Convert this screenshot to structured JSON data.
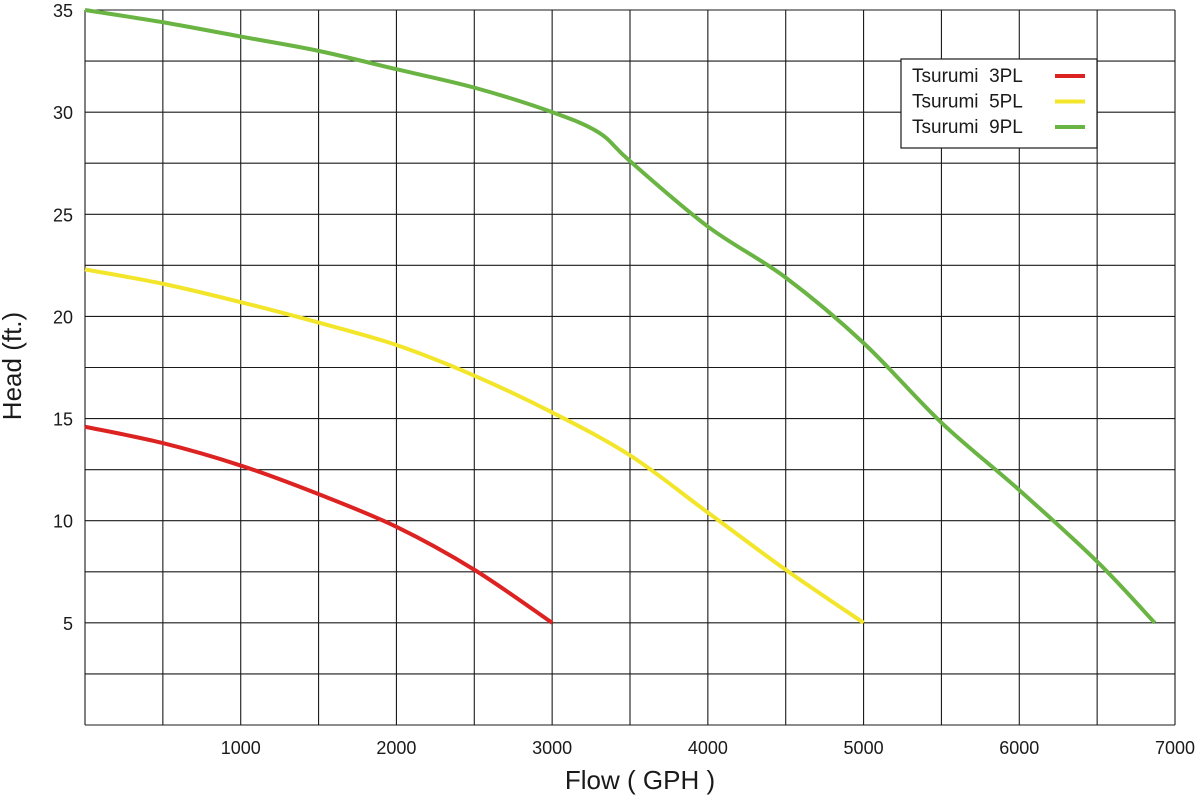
{
  "chart_data": {
    "type": "line",
    "xlabel": "Flow ( GPH )",
    "ylabel": "Head (ft.)",
    "xlim": [
      0,
      7000
    ],
    "ylim": [
      0,
      35
    ],
    "x_ticks": [
      1000,
      2000,
      3000,
      4000,
      5000,
      6000,
      7000
    ],
    "x_tick_labels": [
      "1000",
      "2000",
      "3000",
      "4000",
      "5000",
      "6000",
      "7000"
    ],
    "y_ticks": [
      5,
      10,
      15,
      20,
      25,
      30,
      35
    ],
    "y_tick_labels": [
      "5",
      "10",
      "15",
      "20",
      "25",
      "30",
      "35"
    ],
    "x_grid_step": 500,
    "y_grid_step": 2.5,
    "grid": true,
    "legend_position": "top-right",
    "series": [
      {
        "name": "Tsurumi  3PL",
        "color": "#dd2222",
        "points": [
          [
            0,
            14.6
          ],
          [
            500,
            13.8
          ],
          [
            1000,
            12.7
          ],
          [
            1500,
            11.3
          ],
          [
            2000,
            9.7
          ],
          [
            2500,
            7.6
          ],
          [
            3000,
            5.0
          ]
        ]
      },
      {
        "name": "Tsurumi  5PL",
        "color": "#f2e52a",
        "points": [
          [
            0,
            22.3
          ],
          [
            500,
            21.6
          ],
          [
            1000,
            20.7
          ],
          [
            1500,
            19.7
          ],
          [
            2000,
            18.6
          ],
          [
            2500,
            17.1
          ],
          [
            3000,
            15.3
          ],
          [
            3500,
            13.2
          ],
          [
            4000,
            10.4
          ],
          [
            4500,
            7.6
          ],
          [
            5000,
            5.0
          ]
        ]
      },
      {
        "name": "Tsurumi  9PL",
        "color": "#6ab443",
        "points": [
          [
            0,
            35.0
          ],
          [
            500,
            34.4
          ],
          [
            1000,
            33.7
          ],
          [
            1500,
            33.0
          ],
          [
            2000,
            32.1
          ],
          [
            2500,
            31.2
          ],
          [
            3000,
            30.0
          ],
          [
            3300,
            29.0
          ],
          [
            3500,
            27.6
          ],
          [
            4000,
            24.4
          ],
          [
            4500,
            21.9
          ],
          [
            5000,
            18.7
          ],
          [
            5500,
            14.8
          ],
          [
            6000,
            11.5
          ],
          [
            6500,
            8.0
          ],
          [
            6870,
            5.0
          ]
        ]
      }
    ]
  }
}
